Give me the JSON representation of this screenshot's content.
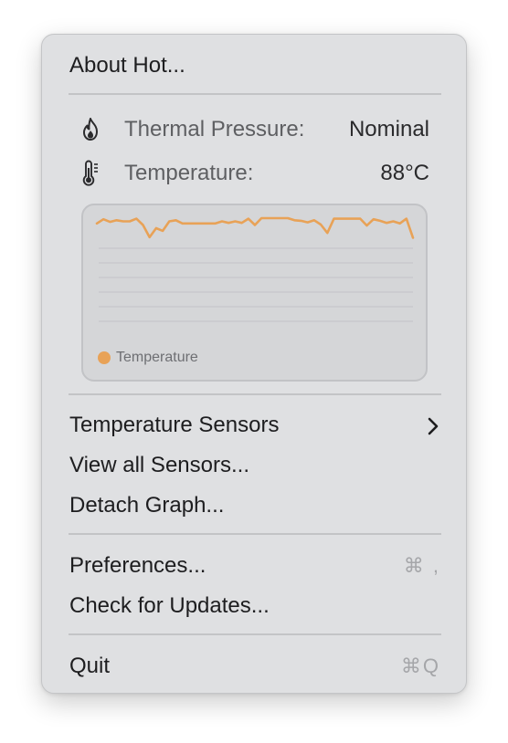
{
  "menu": {
    "about": "About Hot...",
    "thermal_label": "Thermal Pressure:",
    "thermal_value": "Nominal",
    "temp_label": "Temperature:",
    "temp_value": "88°C",
    "items": {
      "temperature_sensors": "Temperature Sensors",
      "view_all_sensors": "View all Sensors...",
      "detach_graph": "Detach Graph...",
      "preferences": "Preferences...",
      "check_updates": "Check for Updates...",
      "quit": "Quit"
    },
    "shortcuts": {
      "preferences": "⌘ ,",
      "quit": "⌘Q"
    },
    "icons": {
      "thermal": "flame-icon",
      "temperature": "thermometer-icon",
      "submenu": "chevron-right-icon"
    }
  },
  "chart_data": {
    "type": "line",
    "series": [
      {
        "name": "Temperature",
        "color": "#e8a257",
        "values": [
          1.0,
          0.2,
          0.7,
          0.4,
          0.6,
          0.6,
          0.1,
          1.3,
          3.6,
          1.9,
          2.4,
          0.6,
          0.4,
          1.0,
          1.0,
          1.0,
          1.0,
          1.0,
          1.0,
          0.6,
          0.9,
          0.6,
          0.9,
          0.1,
          1.3,
          0.0,
          0.0,
          0.0,
          0.0,
          0.0,
          0.4,
          0.5,
          0.8,
          0.4,
          1.2,
          2.8,
          0.1,
          0.1,
          0.1,
          0.1,
          0.1,
          1.4,
          0.2,
          0.5,
          0.9,
          0.6,
          1.0,
          0.1,
          3.7
        ]
      }
    ],
    "legend": "bottom-left",
    "grid": true
  }
}
